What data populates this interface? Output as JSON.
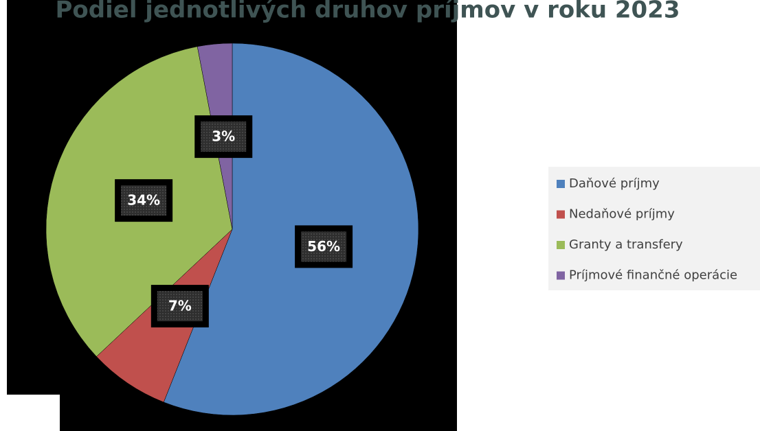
{
  "chart_data": {
    "type": "pie",
    "title": "Podiel jednotlivých druhov príjmov v roku 2023",
    "categories": [
      "Daňové príjmy",
      "Nedaňové príjmy",
      "Granty a transfery",
      "Príjmové finančné operácie"
    ],
    "values": [
      56,
      7,
      34,
      3
    ],
    "value_labels": [
      "56%",
      "7%",
      "34%",
      "3%"
    ],
    "colors": [
      "#4f81bd",
      "#c0504d",
      "#9bbb59",
      "#8064a2"
    ],
    "legend": "right"
  }
}
